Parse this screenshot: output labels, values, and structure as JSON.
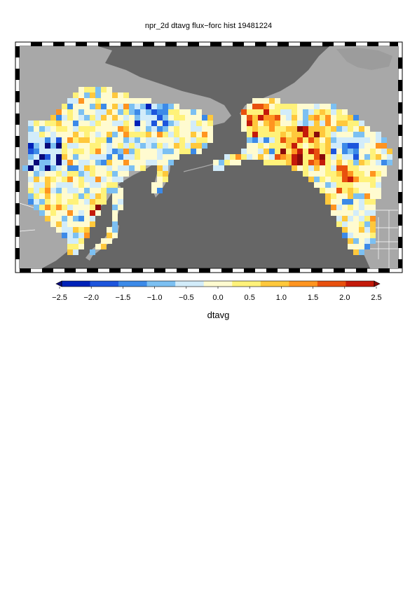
{
  "title": "npr_2d dtavg flux−forc hist 19481224",
  "colorbar": {
    "label": "dtavg",
    "min": -2.5,
    "max": 2.5,
    "ticks": [
      "−2.5",
      "−2.0",
      "−1.5",
      "−1.0",
      "−0.5",
      "0.0",
      "0.5",
      "1.0",
      "1.5",
      "2.0",
      "2.5"
    ],
    "colors": [
      "#0a0a7a",
      "#0022b8",
      "#1d55dc",
      "#3c8ae8",
      "#7cc0f2",
      "#d2ecfa",
      "#fffbd0",
      "#fff27a",
      "#ffc83c",
      "#ff9420",
      "#e8500e",
      "#c41a0a",
      "#8a0a0a"
    ],
    "extend": "both"
  },
  "map": {
    "ocean_color": "#666666",
    "land_color": "#a8a8a8",
    "border_color": "#ffffff",
    "frame": "black-white checkered"
  }
}
